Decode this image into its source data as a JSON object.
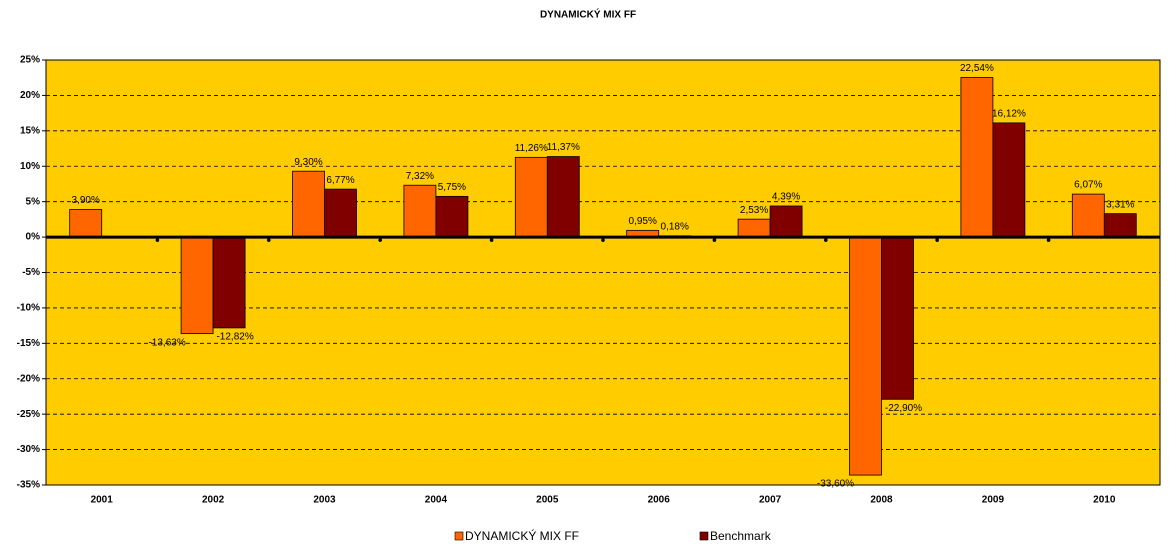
{
  "chart_data": {
    "type": "bar",
    "title": "DYNAMICKÝ MIX FF",
    "categories": [
      "2001",
      "2002",
      "2003",
      "2004",
      "2005",
      "2006",
      "2007",
      "2008",
      "2009",
      "2010"
    ],
    "series": [
      {
        "name": "DYNAMICKÝ MIX FF",
        "color": "#ff6600",
        "values": [
          3.9,
          -13.63,
          9.3,
          7.32,
          11.26,
          0.95,
          2.53,
          -33.6,
          22.54,
          6.07
        ],
        "value_labels": [
          "3,90%",
          "-13,63%",
          "9,30%",
          "7,32%",
          "11,26%",
          "0,95%",
          "2,53%",
          "-33,60%",
          "22,54%",
          "6,07%"
        ]
      },
      {
        "name": "Benchmark",
        "color": "#800000",
        "values": [
          null,
          -12.82,
          6.77,
          5.75,
          11.37,
          0.18,
          4.39,
          -22.9,
          16.12,
          3.31
        ],
        "value_labels": [
          null,
          "-12,82%",
          "6,77%",
          "5,75%",
          "11,37%",
          "0,18%",
          "4,39%",
          "-22,90%",
          "16,12%",
          "3,31%"
        ]
      }
    ],
    "ylim": [
      -35,
      25
    ],
    "yticks": [
      {
        "value": -35,
        "label": "-35%"
      },
      {
        "value": -30,
        "label": "-30%"
      },
      {
        "value": -25,
        "label": "-25%"
      },
      {
        "value": -20,
        "label": "-20%"
      },
      {
        "value": -15,
        "label": "-15%"
      },
      {
        "value": -10,
        "label": "-10%"
      },
      {
        "value": -5,
        "label": "-5%"
      },
      {
        "value": 0,
        "label": "0%"
      },
      {
        "value": 5,
        "label": "5%"
      },
      {
        "value": 10,
        "label": "10%"
      },
      {
        "value": 15,
        "label": "15%"
      },
      {
        "value": 20,
        "label": "20%"
      },
      {
        "value": 25,
        "label": "25%"
      }
    ],
    "grid": true,
    "plot_background": "#ffcc00",
    "legend": "bottom"
  }
}
